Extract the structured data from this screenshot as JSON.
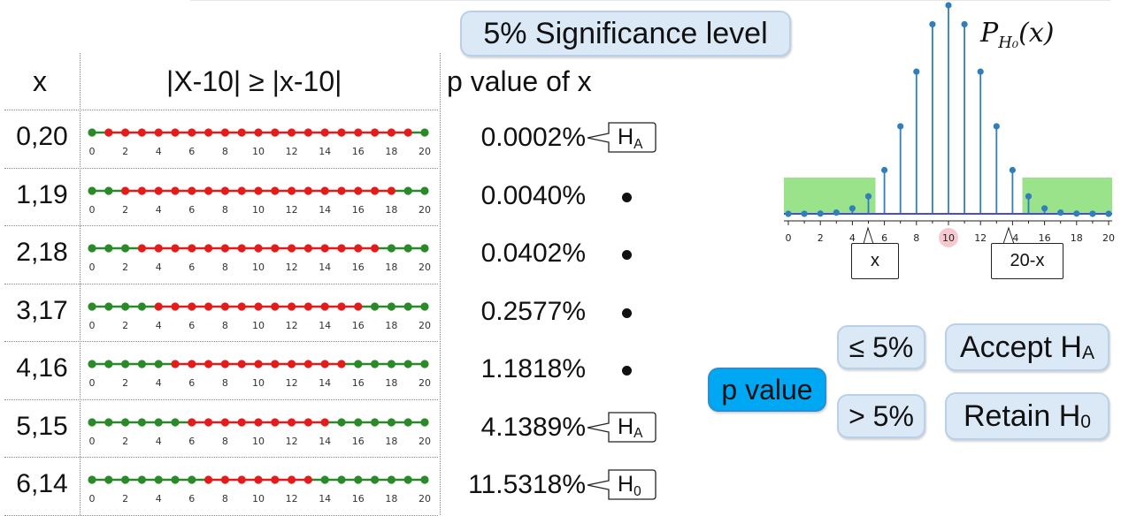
{
  "title": "5% Significance level",
  "table": {
    "headers": {
      "x": "x",
      "event": "|X-10| ≥ |x-10|",
      "pvalue": "p value of x"
    },
    "axis_ticks": [
      "0",
      "2",
      "4",
      "6",
      "8",
      "10",
      "12",
      "14",
      "16",
      "18",
      "20"
    ],
    "rows": [
      {
        "x": "0,20",
        "p": "0.0002%",
        "mark": "H",
        "mark_sub": "A",
        "red_from": 1,
        "red_to": 19
      },
      {
        "x": "1,19",
        "p": "0.0040%",
        "mark": "•",
        "mark_sub": "",
        "red_from": 2,
        "red_to": 18
      },
      {
        "x": "2,18",
        "p": "0.0402%",
        "mark": "•",
        "mark_sub": "",
        "red_from": 3,
        "red_to": 17
      },
      {
        "x": "3,17",
        "p": "0.2577%",
        "mark": "•",
        "mark_sub": "",
        "red_from": 4,
        "red_to": 16
      },
      {
        "x": "4,16",
        "p": "1.1818%",
        "mark": "•",
        "mark_sub": "",
        "red_from": 5,
        "red_to": 15
      },
      {
        "x": "5,15",
        "p": "4.1389%",
        "mark": "H",
        "mark_sub": "A",
        "red_from": 6,
        "red_to": 14
      },
      {
        "x": "6,14",
        "p": "11.5318%",
        "mark": "H",
        "mark_sub": "0",
        "red_from": 7,
        "red_to": 13
      }
    ]
  },
  "plot": {
    "title_main": "P",
    "title_sub": "H₀",
    "title_arg": "(x)",
    "x_ticks": [
      "0",
      "2",
      "4",
      "6",
      "8",
      "10",
      "12",
      "14",
      "16",
      "18",
      "20"
    ],
    "pmf": [
      1e-06,
      1.9e-05,
      0.000181,
      0.001087,
      0.004621,
      0.014786,
      0.036964,
      0.073929,
      0.120134,
      0.160179,
      0.176197,
      0.160179,
      0.120134,
      0.073929,
      0.036964,
      0.014786,
      0.004621,
      0.001087,
      0.000181,
      1.9e-05,
      1e-06
    ],
    "shaded_left_to": 5,
    "shaded_right_from": 15,
    "highlight_x": 10,
    "box_left": "x",
    "box_right": "20-x",
    "colors": {
      "stem": "#2f7ebd",
      "shade": "#9ae38a",
      "baseline": "#4b4bd8",
      "highlight": "#f6c9d1"
    }
  },
  "decision": {
    "pvalue_label": "p value",
    "le_label": "≤ 5%",
    "gt_label": "> 5%",
    "accept_main": "Accept H",
    "accept_sub": "A",
    "retain_main": "Retain H",
    "retain_sub": "0"
  },
  "colors": {
    "green": "#2a8a2a",
    "red": "#e31b1b",
    "pill_light": "#dbe8f5",
    "pill_blue": "#00a7f3"
  }
}
